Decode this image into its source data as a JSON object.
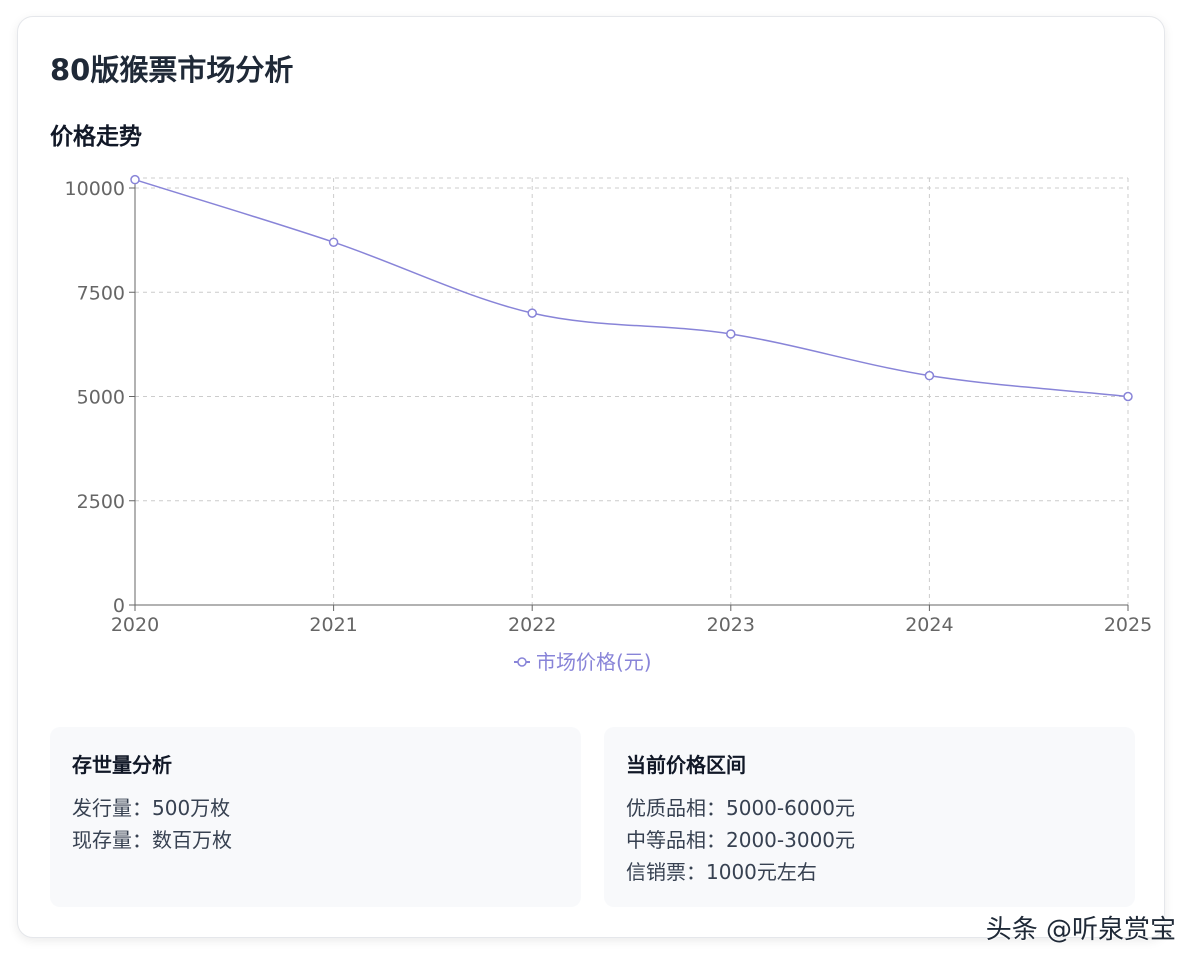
{
  "page_title": "80版猴票市场分析",
  "section_title": "价格走势",
  "chart_data": {
    "type": "line",
    "title": "",
    "xlabel": "",
    "ylabel": "",
    "x": [
      "2020",
      "2021",
      "2022",
      "2023",
      "2024",
      "2025"
    ],
    "series": [
      {
        "name": "市场价格(元)",
        "color": "#8884d8",
        "values": [
          10200,
          8700,
          7000,
          6500,
          5500,
          5000
        ]
      }
    ],
    "y_ticks": [
      0,
      2500,
      5000,
      7500,
      10000
    ],
    "ylim": [
      0,
      10000
    ],
    "grid": true,
    "legend_position": "bottom"
  },
  "stock_box": {
    "title": "存世量分析",
    "lines": [
      "发行量：500万枚",
      "现存量：数百万枚"
    ]
  },
  "price_box": {
    "title": "当前价格区间",
    "lines": [
      "优质品相：5000-6000元",
      "中等品相：2000-3000元",
      "信销票：1000元左右"
    ]
  },
  "watermark": "头条 @听泉赏宝"
}
